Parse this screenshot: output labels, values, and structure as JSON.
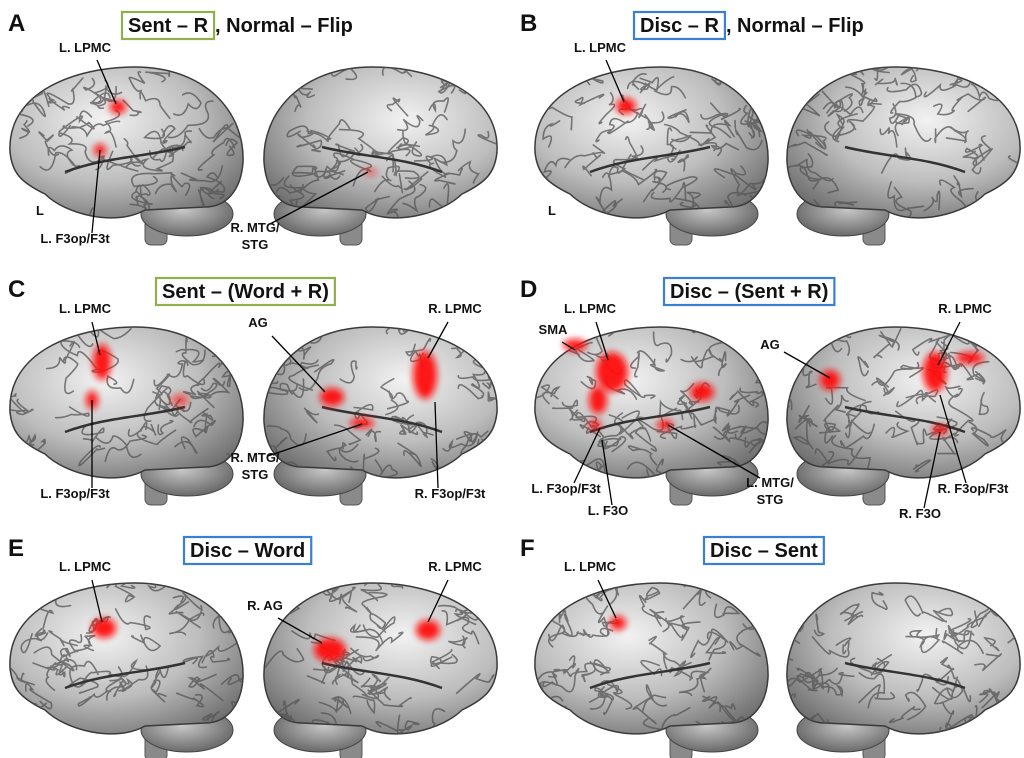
{
  "panels": [
    {
      "letter": "A",
      "title_boxed": "Sent – R",
      "title_rest": ", Normal – Flip",
      "box_color": "#8fb04b",
      "hemisphere": "L",
      "labels": [
        [
          "L. LPMC"
        ],
        [
          "L. F3op/F3t"
        ],
        [
          "R. MTG/",
          "STG"
        ]
      ]
    },
    {
      "letter": "B",
      "title_boxed": "Disc – R",
      "title_rest": ", Normal – Flip",
      "box_color": "#3b7fd0",
      "hemisphere": "L",
      "labels": [
        [
          "L. LPMC"
        ]
      ]
    },
    {
      "letter": "C",
      "title_boxed": "Sent – (Word + R)",
      "box_color": "#8fb04b",
      "labels": [
        [
          "L. LPMC"
        ],
        [
          "L. F3op/F3t"
        ],
        [
          "AG"
        ],
        [
          "R. LPMC"
        ],
        [
          "R. MTG/",
          "STG"
        ],
        [
          "R. F3op/F3t"
        ]
      ]
    },
    {
      "letter": "D",
      "title_boxed": "Disc – (Sent + R)",
      "box_color": "#3b7fd0",
      "labels": [
        [
          "L. LPMC"
        ],
        [
          "SMA"
        ],
        [
          "AG"
        ],
        [
          "R. LPMC"
        ],
        [
          "L. F3op/F3t"
        ],
        [
          "L. F3O"
        ],
        [
          "L. MTG/",
          "STG"
        ],
        [
          "R. F3O"
        ],
        [
          "R. F3op/F3t"
        ]
      ]
    },
    {
      "letter": "E",
      "title_boxed": "Disc – Word",
      "box_color": "#3b7fd0",
      "labels": [
        [
          "L. LPMC"
        ],
        [
          "R. AG"
        ],
        [
          "R. LPMC"
        ]
      ]
    },
    {
      "letter": "F",
      "title_boxed": "Disc – Sent",
      "box_color": "#3b7fd0",
      "labels": [
        [
          "L. LPMC"
        ]
      ]
    }
  ]
}
